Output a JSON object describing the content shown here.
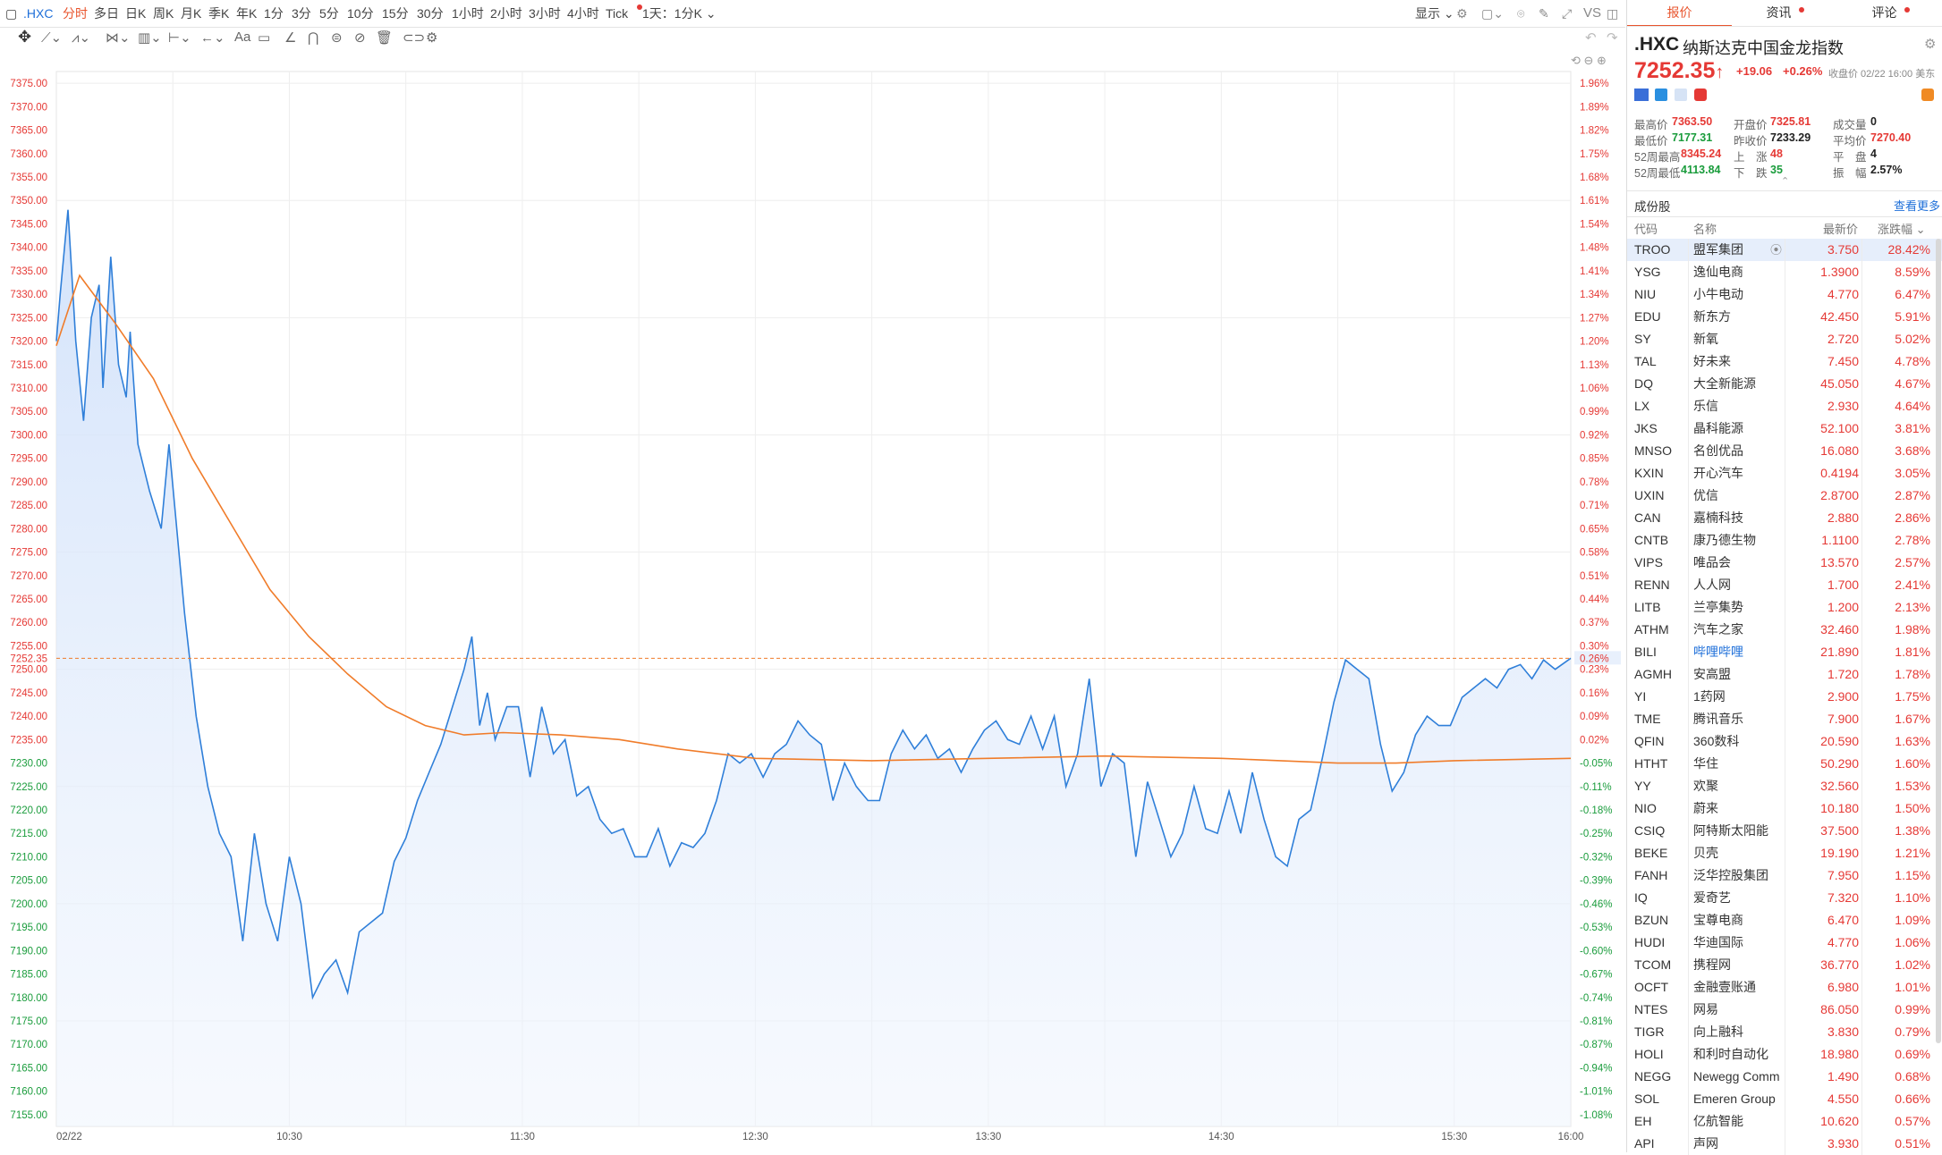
{
  "toolbar": {
    "symbol": ".HXC",
    "periods": [
      "分时",
      "多日",
      "日K",
      "周K",
      "月K",
      "季K",
      "年K",
      "1分",
      "3分",
      "5分",
      "10分",
      "15分",
      "30分",
      "1小时",
      "2小时",
      "3小时",
      "4小时",
      "Tick"
    ],
    "active_period": "分时",
    "range_select": "1天：1分K",
    "display_label": "显示",
    "vs_label": "VS"
  },
  "chart": {
    "date_label": "02/22",
    "time_labels": [
      "10:30",
      "11:30",
      "12:30",
      "13:30",
      "14:30",
      "15:30",
      "16:00"
    ],
    "price_ticks": [
      "7375.00",
      "7370.00",
      "7365.00",
      "7360.00",
      "7355.00",
      "7350.00",
      "7345.00",
      "7340.00",
      "7335.00",
      "7330.00",
      "7325.00",
      "7320.00",
      "7315.00",
      "7310.00",
      "7305.00",
      "7300.00",
      "7295.00",
      "7290.00",
      "7285.00",
      "7280.00",
      "7275.00",
      "7270.00",
      "7265.00",
      "7260.00",
      "7255.00",
      "7250.00",
      "7245.00",
      "7240.00",
      "7235.00",
      "7230.00",
      "7225.00",
      "7220.00",
      "7215.00",
      "7210.00",
      "7205.00",
      "7200.00",
      "7195.00",
      "7190.00",
      "7185.00",
      "7180.00",
      "7175.00",
      "7170.00",
      "7165.00",
      "7160.00",
      "7155.00"
    ],
    "pct_ticks": [
      "1.96%",
      "1.89%",
      "1.82%",
      "1.75%",
      "1.68%",
      "1.61%",
      "1.54%",
      "1.48%",
      "1.41%",
      "1.34%",
      "1.27%",
      "1.20%",
      "1.13%",
      "1.06%",
      "0.99%",
      "0.92%",
      "0.85%",
      "0.78%",
      "0.71%",
      "0.65%",
      "0.58%",
      "0.51%",
      "0.44%",
      "0.37%",
      "0.30%",
      "0.23%",
      "0.16%",
      "0.09%",
      "0.02%",
      "-0.05%",
      "-0.11%",
      "-0.18%",
      "-0.25%",
      "-0.32%",
      "-0.39%",
      "-0.46%",
      "-0.53%",
      "-0.60%",
      "-0.67%",
      "-0.74%",
      "-0.81%",
      "-0.87%",
      "-0.94%",
      "-1.01%",
      "-1.08%"
    ],
    "current_price_label": "7252.35",
    "current_pct_label": "0.26%",
    "colors": {
      "price_line": "#2f7fd9",
      "avg_line": "#f07c2a",
      "up": "#e53935",
      "down": "#1a9c3c"
    }
  },
  "chart_data": {
    "type": "line",
    "title": "",
    "xlabel": "",
    "ylabel": "",
    "ylim": [
      7152.5,
      7377.5
    ],
    "x_range": [
      "09:30",
      "16:00"
    ],
    "reference_price": 7252.35,
    "grid": true,
    "series": [
      {
        "name": "",
        "color": "#2f7fd9",
        "points": [
          [
            "09:30",
            7320
          ],
          [
            "09:31",
            7330
          ],
          [
            "09:33",
            7348
          ],
          [
            "09:35",
            7320
          ],
          [
            "09:37",
            7303
          ],
          [
            "09:39",
            7325
          ],
          [
            "09:41",
            7332
          ],
          [
            "09:42",
            7310
          ],
          [
            "09:44",
            7338
          ],
          [
            "09:46",
            7315
          ],
          [
            "09:48",
            7308
          ],
          [
            "09:49",
            7322
          ],
          [
            "09:51",
            7298
          ],
          [
            "09:54",
            7288
          ],
          [
            "09:57",
            7280
          ],
          [
            "09:59",
            7298
          ],
          [
            "10:01",
            7280
          ],
          [
            "10:03",
            7262
          ],
          [
            "10:06",
            7240
          ],
          [
            "10:09",
            7225
          ],
          [
            "10:12",
            7215
          ],
          [
            "10:15",
            7210
          ],
          [
            "10:18",
            7192
          ],
          [
            "10:21",
            7215
          ],
          [
            "10:24",
            7200
          ],
          [
            "10:27",
            7192
          ],
          [
            "10:30",
            7210
          ],
          [
            "10:33",
            7200
          ],
          [
            "10:36",
            7180
          ],
          [
            "10:39",
            7185
          ],
          [
            "10:42",
            7188
          ],
          [
            "10:45",
            7181
          ],
          [
            "10:48",
            7194
          ],
          [
            "10:51",
            7196
          ],
          [
            "10:54",
            7198
          ],
          [
            "10:57",
            7209
          ],
          [
            "11:00",
            7214
          ],
          [
            "11:03",
            7222
          ],
          [
            "11:06",
            7228
          ],
          [
            "11:09",
            7234
          ],
          [
            "11:12",
            7242
          ],
          [
            "11:15",
            7250
          ],
          [
            "11:17",
            7257
          ],
          [
            "11:19",
            7238
          ],
          [
            "11:21",
            7245
          ],
          [
            "11:23",
            7235
          ],
          [
            "11:26",
            7242
          ],
          [
            "11:29",
            7242
          ],
          [
            "11:32",
            7227
          ],
          [
            "11:35",
            7242
          ],
          [
            "11:38",
            7232
          ],
          [
            "11:41",
            7235
          ],
          [
            "11:44",
            7223
          ],
          [
            "11:47",
            7225
          ],
          [
            "11:50",
            7218
          ],
          [
            "11:53",
            7215
          ],
          [
            "11:56",
            7216
          ],
          [
            "11:59",
            7210
          ],
          [
            "12:02",
            7210
          ],
          [
            "12:05",
            7216
          ],
          [
            "12:08",
            7208
          ],
          [
            "12:11",
            7213
          ],
          [
            "12:14",
            7212
          ],
          [
            "12:17",
            7215
          ],
          [
            "12:20",
            7222
          ],
          [
            "12:23",
            7232
          ],
          [
            "12:26",
            7230
          ],
          [
            "12:29",
            7232
          ],
          [
            "12:32",
            7227
          ],
          [
            "12:35",
            7232
          ],
          [
            "12:38",
            7234
          ],
          [
            "12:41",
            7239
          ],
          [
            "12:44",
            7236
          ],
          [
            "12:47",
            7234
          ],
          [
            "12:50",
            7222
          ],
          [
            "12:53",
            7230
          ],
          [
            "12:56",
            7225
          ],
          [
            "12:59",
            7222
          ],
          [
            "13:02",
            7222
          ],
          [
            "13:05",
            7232
          ],
          [
            "13:08",
            7237
          ],
          [
            "13:11",
            7233
          ],
          [
            "13:14",
            7236
          ],
          [
            "13:17",
            7231
          ],
          [
            "13:20",
            7233
          ],
          [
            "13:23",
            7228
          ],
          [
            "13:26",
            7233
          ],
          [
            "13:29",
            7237
          ],
          [
            "13:32",
            7239
          ],
          [
            "13:35",
            7235
          ],
          [
            "13:38",
            7234
          ],
          [
            "13:41",
            7240
          ],
          [
            "13:44",
            7233
          ],
          [
            "13:47",
            7240
          ],
          [
            "13:50",
            7225
          ],
          [
            "13:53",
            7232
          ],
          [
            "13:56",
            7248
          ],
          [
            "13:59",
            7225
          ],
          [
            "14:02",
            7232
          ],
          [
            "14:05",
            7230
          ],
          [
            "14:08",
            7210
          ],
          [
            "14:11",
            7226
          ],
          [
            "14:14",
            7218
          ],
          [
            "14:17",
            7210
          ],
          [
            "14:20",
            7215
          ],
          [
            "14:23",
            7225
          ],
          [
            "14:26",
            7216
          ],
          [
            "14:29",
            7215
          ],
          [
            "14:32",
            7224
          ],
          [
            "14:35",
            7215
          ],
          [
            "14:38",
            7228
          ],
          [
            "14:41",
            7218
          ],
          [
            "14:44",
            7210
          ],
          [
            "14:47",
            7208
          ],
          [
            "14:50",
            7218
          ],
          [
            "14:53",
            7220
          ],
          [
            "14:56",
            7231
          ],
          [
            "14:59",
            7243
          ],
          [
            "15:02",
            7252
          ],
          [
            "15:05",
            7250
          ],
          [
            "15:08",
            7248
          ],
          [
            "15:11",
            7234
          ],
          [
            "15:14",
            7224
          ],
          [
            "15:17",
            7228
          ],
          [
            "15:20",
            7236
          ],
          [
            "15:23",
            7240
          ],
          [
            "15:26",
            7238
          ],
          [
            "15:29",
            7238
          ],
          [
            "15:32",
            7244
          ],
          [
            "15:35",
            7246
          ],
          [
            "15:38",
            7248
          ],
          [
            "15:41",
            7246
          ],
          [
            "15:44",
            7250
          ],
          [
            "15:47",
            7251
          ],
          [
            "15:50",
            7248
          ],
          [
            "15:53",
            7252
          ],
          [
            "15:56",
            7250
          ],
          [
            "16:00",
            7252.35
          ]
        ]
      },
      {
        "name": "",
        "color": "#f07c2a",
        "points": [
          [
            "09:30",
            7319
          ],
          [
            "09:36",
            7334
          ],
          [
            "09:45",
            7324
          ],
          [
            "09:55",
            7312
          ],
          [
            "10:05",
            7295
          ],
          [
            "10:15",
            7281
          ],
          [
            "10:25",
            7267
          ],
          [
            "10:35",
            7257
          ],
          [
            "10:45",
            7249
          ],
          [
            "10:55",
            7242
          ],
          [
            "11:05",
            7238
          ],
          [
            "11:15",
            7236
          ],
          [
            "11:25",
            7236.5
          ],
          [
            "11:40",
            7236
          ],
          [
            "11:55",
            7235
          ],
          [
            "12:10",
            7233
          ],
          [
            "12:30",
            7231
          ],
          [
            "13:00",
            7230.5
          ],
          [
            "13:30",
            7231
          ],
          [
            "14:00",
            7231.5
          ],
          [
            "14:30",
            7231
          ],
          [
            "15:00",
            7230
          ],
          [
            "15:15",
            7230
          ],
          [
            "15:30",
            7230.5
          ],
          [
            "16:00",
            7231
          ]
        ]
      }
    ]
  },
  "panel": {
    "tabs": [
      {
        "label": "报价",
        "active": true,
        "dot": false
      },
      {
        "label": "资讯",
        "active": false,
        "dot": true
      },
      {
        "label": "评论",
        "active": false,
        "dot": true
      }
    ],
    "symbol": ".HXC",
    "name": "纳斯达克中国金龙指数",
    "price": "7252.35",
    "change": "+19.06",
    "change_pct": "+0.26%",
    "close_time": "收盘价 02/22 16:00 美东",
    "stats": [
      {
        "label": "最高价",
        "value": "7363.50",
        "color": "up"
      },
      {
        "label": "开盘价",
        "value": "7325.81",
        "color": "up"
      },
      {
        "label": "成交量",
        "value": "0",
        "color": "blk"
      },
      {
        "label": "最低价",
        "value": "7177.31",
        "color": "dn"
      },
      {
        "label": "昨收价",
        "value": "7233.29",
        "color": "blk"
      },
      {
        "label": "平均价",
        "value": "7270.40",
        "color": "up"
      },
      {
        "label": "52周最高",
        "value": "8345.24",
        "color": "up"
      },
      {
        "label": "上　涨",
        "value": "48",
        "color": "up"
      },
      {
        "label": "平　盘",
        "value": "4",
        "color": "blk"
      },
      {
        "label": "52周最低",
        "value": "4113.84",
        "color": "dn"
      },
      {
        "label": "下　跌",
        "value": "35",
        "color": "dn"
      },
      {
        "label": "振　幅",
        "value": "2.57%",
        "color": "blk"
      }
    ],
    "constituents_title": "成份股",
    "more_link": "查看更多",
    "headers": [
      "代码",
      "名称",
      "最新价",
      "涨跌幅"
    ],
    "rows": [
      {
        "code": "TROO",
        "name": "盟军集团",
        "price": "3.750",
        "chg": "28.42%"
      },
      {
        "code": "YSG",
        "name": "逸仙电商",
        "price": "1.3900",
        "chg": "8.59%"
      },
      {
        "code": "NIU",
        "name": "小牛电动",
        "price": "4.770",
        "chg": "6.47%"
      },
      {
        "code": "EDU",
        "name": "新东方",
        "price": "42.450",
        "chg": "5.91%"
      },
      {
        "code": "SY",
        "name": "新氧",
        "price": "2.720",
        "chg": "5.02%"
      },
      {
        "code": "TAL",
        "name": "好未来",
        "price": "7.450",
        "chg": "4.78%"
      },
      {
        "code": "DQ",
        "name": "大全新能源",
        "price": "45.050",
        "chg": "4.67%"
      },
      {
        "code": "LX",
        "name": "乐信",
        "price": "2.930",
        "chg": "4.64%"
      },
      {
        "code": "JKS",
        "name": "晶科能源",
        "price": "52.100",
        "chg": "3.81%"
      },
      {
        "code": "MNSO",
        "name": "名创优品",
        "price": "16.080",
        "chg": "3.68%"
      },
      {
        "code": "KXIN",
        "name": "开心汽车",
        "price": "0.4194",
        "chg": "3.05%"
      },
      {
        "code": "UXIN",
        "name": "优信",
        "price": "2.8700",
        "chg": "2.87%"
      },
      {
        "code": "CAN",
        "name": "嘉楠科技",
        "price": "2.880",
        "chg": "2.86%"
      },
      {
        "code": "CNTB",
        "name": "康乃德生物",
        "price": "1.1100",
        "chg": "2.78%"
      },
      {
        "code": "VIPS",
        "name": "唯品会",
        "price": "13.570",
        "chg": "2.57%"
      },
      {
        "code": "RENN",
        "name": "人人网",
        "price": "1.700",
        "chg": "2.41%"
      },
      {
        "code": "LITB",
        "name": "兰亭集势",
        "price": "1.200",
        "chg": "2.13%"
      },
      {
        "code": "ATHM",
        "name": "汽车之家",
        "price": "32.460",
        "chg": "1.98%"
      },
      {
        "code": "BILI",
        "name": "哔哩哔哩",
        "price": "21.890",
        "chg": "1.81%"
      },
      {
        "code": "AGMH",
        "name": "安高盟",
        "price": "1.720",
        "chg": "1.78%"
      },
      {
        "code": "YI",
        "name": "1药网",
        "price": "2.900",
        "chg": "1.75%"
      },
      {
        "code": "TME",
        "name": "腾讯音乐",
        "price": "7.900",
        "chg": "1.67%"
      },
      {
        "code": "QFIN",
        "name": "360数科",
        "price": "20.590",
        "chg": "1.63%"
      },
      {
        "code": "HTHT",
        "name": "华住",
        "price": "50.290",
        "chg": "1.60%"
      },
      {
        "code": "YY",
        "name": "欢聚",
        "price": "32.560",
        "chg": "1.53%"
      },
      {
        "code": "NIO",
        "name": "蔚来",
        "price": "10.180",
        "chg": "1.50%"
      },
      {
        "code": "CSIQ",
        "name": "阿特斯太阳能",
        "price": "37.500",
        "chg": "1.38%"
      },
      {
        "code": "BEKE",
        "name": "贝壳",
        "price": "19.190",
        "chg": "1.21%"
      },
      {
        "code": "FANH",
        "name": "泛华控股集团",
        "price": "7.950",
        "chg": "1.15%"
      },
      {
        "code": "IQ",
        "name": "爱奇艺",
        "price": "7.320",
        "chg": "1.10%"
      },
      {
        "code": "BZUN",
        "name": "宝尊电商",
        "price": "6.470",
        "chg": "1.09%"
      },
      {
        "code": "HUDI",
        "name": "华迪国际",
        "price": "4.770",
        "chg": "1.06%"
      },
      {
        "code": "TCOM",
        "name": "携程网",
        "price": "36.770",
        "chg": "1.02%"
      },
      {
        "code": "OCFT",
        "name": "金融壹账通",
        "price": "6.980",
        "chg": "1.01%"
      },
      {
        "code": "NTES",
        "name": "网易",
        "price": "86.050",
        "chg": "0.99%"
      },
      {
        "code": "TIGR",
        "name": "向上融科",
        "price": "3.830",
        "chg": "0.79%"
      },
      {
        "code": "HOLI",
        "name": "和利时自动化",
        "price": "18.980",
        "chg": "0.69%"
      },
      {
        "code": "NEGG",
        "name": "Newegg Comm",
        "price": "1.490",
        "chg": "0.68%"
      },
      {
        "code": "SOL",
        "name": "Emeren Group",
        "price": "4.550",
        "chg": "0.66%"
      },
      {
        "code": "EH",
        "name": "亿航智能",
        "price": "10.620",
        "chg": "0.57%"
      },
      {
        "code": "API",
        "name": "声网",
        "price": "3.930",
        "chg": "0.51%"
      }
    ]
  }
}
